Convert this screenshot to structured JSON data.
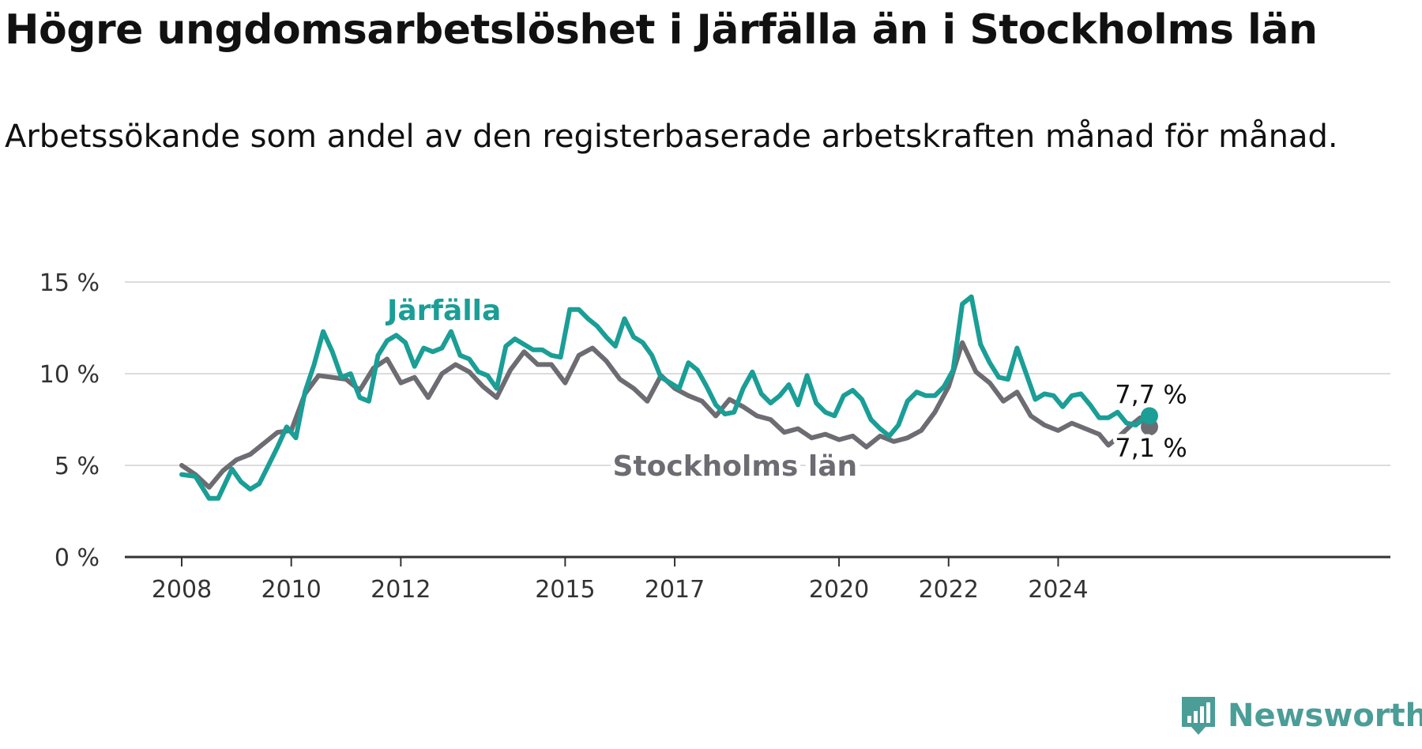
{
  "title": "Högre ungdomsarbetslöshet i Järfälla än i Stockholms län",
  "subtitle": "Arbetssökande som andel av den registerbaserade arbetskraften månad för månad.",
  "brand": "Newsworthy",
  "colors": {
    "jarfalla": "#1a9e96",
    "stockholm": "#6d6c72",
    "grid": "#dcdcdc",
    "axis": "#333333"
  },
  "chart_data": {
    "type": "line",
    "ylim": [
      0,
      15
    ],
    "yticks": [
      {
        "v": 0,
        "label": "0 %"
      },
      {
        "v": 5,
        "label": "5 %"
      },
      {
        "v": 10,
        "label": "10 %"
      },
      {
        "v": 15,
        "label": "15 %"
      }
    ],
    "xticks": [
      "2008",
      "2010",
      "2012",
      "2015",
      "2017",
      "2020",
      "2022",
      "2024"
    ],
    "xlim": [
      "2008-01",
      "2025-09"
    ],
    "grid": true,
    "series": [
      {
        "name": "Järfälla",
        "end_label": "7,7 %",
        "points": [
          [
            "2008-01",
            4.5
          ],
          [
            "2008-04",
            4.4
          ],
          [
            "2008-07",
            3.2
          ],
          [
            "2008-09",
            3.2
          ],
          [
            "2008-12",
            4.8
          ],
          [
            "2009-02",
            4.1
          ],
          [
            "2009-04",
            3.7
          ],
          [
            "2009-06",
            4.0
          ],
          [
            "2009-08",
            5.0
          ],
          [
            "2009-10",
            6.0
          ],
          [
            "2009-12",
            7.1
          ],
          [
            "2010-02",
            6.5
          ],
          [
            "2010-04",
            9.0
          ],
          [
            "2010-06",
            10.5
          ],
          [
            "2010-08",
            12.3
          ],
          [
            "2010-10",
            11.2
          ],
          [
            "2010-12",
            9.8
          ],
          [
            "2011-02",
            10.0
          ],
          [
            "2011-04",
            8.7
          ],
          [
            "2011-06",
            8.5
          ],
          [
            "2011-08",
            11.0
          ],
          [
            "2011-10",
            11.8
          ],
          [
            "2011-12",
            12.1
          ],
          [
            "2012-02",
            11.7
          ],
          [
            "2012-04",
            10.4
          ],
          [
            "2012-06",
            11.4
          ],
          [
            "2012-08",
            11.2
          ],
          [
            "2012-10",
            11.4
          ],
          [
            "2012-12",
            12.3
          ],
          [
            "2013-02",
            11.0
          ],
          [
            "2013-04",
            10.8
          ],
          [
            "2013-06",
            10.1
          ],
          [
            "2013-08",
            9.9
          ],
          [
            "2013-10",
            9.2
          ],
          [
            "2013-12",
            11.5
          ],
          [
            "2014-02",
            11.9
          ],
          [
            "2014-04",
            11.6
          ],
          [
            "2014-06",
            11.3
          ],
          [
            "2014-08",
            11.3
          ],
          [
            "2014-10",
            11.0
          ],
          [
            "2014-12",
            10.9
          ],
          [
            "2015-02",
            13.5
          ],
          [
            "2015-04",
            13.5
          ],
          [
            "2015-06",
            13.0
          ],
          [
            "2015-08",
            12.6
          ],
          [
            "2015-10",
            12.0
          ],
          [
            "2015-12",
            11.5
          ],
          [
            "2016-02",
            13.0
          ],
          [
            "2016-04",
            12.0
          ],
          [
            "2016-06",
            11.7
          ],
          [
            "2016-08",
            11.0
          ],
          [
            "2016-10",
            9.8
          ],
          [
            "2016-12",
            9.5
          ],
          [
            "2017-02",
            9.2
          ],
          [
            "2017-04",
            10.6
          ],
          [
            "2017-06",
            10.2
          ],
          [
            "2017-08",
            9.3
          ],
          [
            "2017-10",
            8.3
          ],
          [
            "2017-12",
            7.8
          ],
          [
            "2018-02",
            7.9
          ],
          [
            "2018-04",
            9.2
          ],
          [
            "2018-06",
            10.1
          ],
          [
            "2018-08",
            8.9
          ],
          [
            "2018-10",
            8.4
          ],
          [
            "2018-12",
            8.8
          ],
          [
            "2019-02",
            9.4
          ],
          [
            "2019-04",
            8.3
          ],
          [
            "2019-06",
            9.9
          ],
          [
            "2019-08",
            8.4
          ],
          [
            "2019-10",
            7.9
          ],
          [
            "2019-12",
            7.7
          ],
          [
            "2020-02",
            8.8
          ],
          [
            "2020-04",
            9.1
          ],
          [
            "2020-06",
            8.6
          ],
          [
            "2020-08",
            7.5
          ],
          [
            "2020-10",
            7.0
          ],
          [
            "2020-12",
            6.6
          ],
          [
            "2021-02",
            7.2
          ],
          [
            "2021-04",
            8.5
          ],
          [
            "2021-06",
            9.0
          ],
          [
            "2021-08",
            8.8
          ],
          [
            "2021-10",
            8.8
          ],
          [
            "2021-12",
            9.3
          ],
          [
            "2022-02",
            10.2
          ],
          [
            "2022-04",
            13.8
          ],
          [
            "2022-06",
            14.2
          ],
          [
            "2022-08",
            11.6
          ],
          [
            "2022-10",
            10.6
          ],
          [
            "2022-12",
            9.8
          ],
          [
            "2023-02",
            9.7
          ],
          [
            "2023-04",
            11.4
          ],
          [
            "2023-06",
            10.0
          ],
          [
            "2023-08",
            8.6
          ],
          [
            "2023-10",
            8.9
          ],
          [
            "2023-12",
            8.8
          ],
          [
            "2024-02",
            8.2
          ],
          [
            "2024-04",
            8.8
          ],
          [
            "2024-06",
            8.9
          ],
          [
            "2024-08",
            8.3
          ],
          [
            "2024-10",
            7.6
          ],
          [
            "2024-12",
            7.6
          ],
          [
            "2025-02",
            7.9
          ],
          [
            "2025-04",
            7.3
          ],
          [
            "2025-06",
            7.2
          ],
          [
            "2025-08",
            7.6
          ],
          [
            "2025-09",
            7.7
          ]
        ]
      },
      {
        "name": "Stockholms län",
        "end_label": "7,1 %",
        "points": [
          [
            "2008-01",
            5.0
          ],
          [
            "2008-04",
            4.5
          ],
          [
            "2008-07",
            3.8
          ],
          [
            "2008-10",
            4.7
          ],
          [
            "2009-01",
            5.3
          ],
          [
            "2009-04",
            5.6
          ],
          [
            "2009-07",
            6.2
          ],
          [
            "2009-10",
            6.8
          ],
          [
            "2010-01",
            6.9
          ],
          [
            "2010-04",
            8.9
          ],
          [
            "2010-07",
            9.9
          ],
          [
            "2010-10",
            9.8
          ],
          [
            "2011-01",
            9.7
          ],
          [
            "2011-04",
            9.1
          ],
          [
            "2011-07",
            10.3
          ],
          [
            "2011-10",
            10.8
          ],
          [
            "2012-01",
            9.5
          ],
          [
            "2012-04",
            9.8
          ],
          [
            "2012-07",
            8.7
          ],
          [
            "2012-10",
            10.0
          ],
          [
            "2013-01",
            10.5
          ],
          [
            "2013-04",
            10.1
          ],
          [
            "2013-07",
            9.3
          ],
          [
            "2013-10",
            8.7
          ],
          [
            "2014-01",
            10.2
          ],
          [
            "2014-04",
            11.2
          ],
          [
            "2014-07",
            10.5
          ],
          [
            "2014-10",
            10.5
          ],
          [
            "2015-01",
            9.5
          ],
          [
            "2015-04",
            11.0
          ],
          [
            "2015-07",
            11.4
          ],
          [
            "2015-10",
            10.7
          ],
          [
            "2016-01",
            9.7
          ],
          [
            "2016-04",
            9.2
          ],
          [
            "2016-07",
            8.5
          ],
          [
            "2016-10",
            9.9
          ],
          [
            "2017-01",
            9.2
          ],
          [
            "2017-04",
            8.8
          ],
          [
            "2017-07",
            8.5
          ],
          [
            "2017-10",
            7.7
          ],
          [
            "2018-01",
            8.6
          ],
          [
            "2018-04",
            8.2
          ],
          [
            "2018-07",
            7.7
          ],
          [
            "2018-10",
            7.5
          ],
          [
            "2019-01",
            6.8
          ],
          [
            "2019-04",
            7.0
          ],
          [
            "2019-07",
            6.5
          ],
          [
            "2019-10",
            6.7
          ],
          [
            "2020-01",
            6.4
          ],
          [
            "2020-04",
            6.6
          ],
          [
            "2020-07",
            6.0
          ],
          [
            "2020-10",
            6.6
          ],
          [
            "2021-01",
            6.3
          ],
          [
            "2021-04",
            6.5
          ],
          [
            "2021-07",
            6.9
          ],
          [
            "2021-10",
            7.9
          ],
          [
            "2022-01",
            9.3
          ],
          [
            "2022-04",
            11.7
          ],
          [
            "2022-07",
            10.1
          ],
          [
            "2022-10",
            9.5
          ],
          [
            "2023-01",
            8.5
          ],
          [
            "2023-04",
            9.0
          ],
          [
            "2023-07",
            7.7
          ],
          [
            "2023-10",
            7.2
          ],
          [
            "2024-01",
            6.9
          ],
          [
            "2024-04",
            7.3
          ],
          [
            "2024-07",
            7.0
          ],
          [
            "2024-10",
            6.7
          ],
          [
            "2024-12",
            6.1
          ],
          [
            "2025-02",
            6.5
          ],
          [
            "2025-05",
            7.2
          ],
          [
            "2025-07",
            7.6
          ],
          [
            "2025-09",
            7.1
          ]
        ]
      }
    ]
  }
}
